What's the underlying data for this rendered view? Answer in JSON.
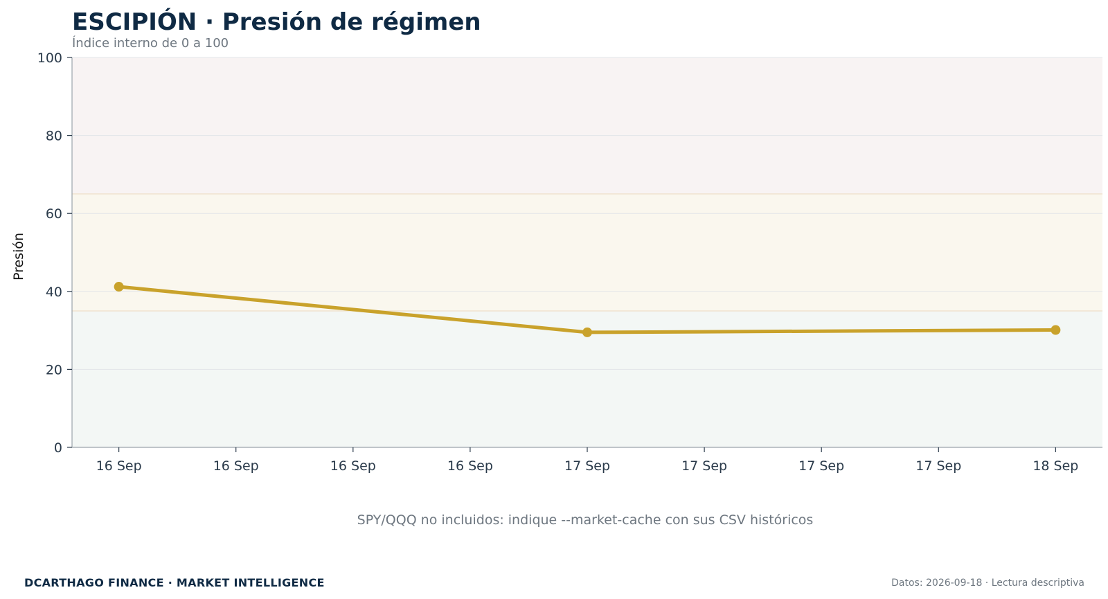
{
  "header": {
    "title": "ESCIPIÓN · Presión de régimen",
    "subtitle": "Índice interno de 0 a 100"
  },
  "note": "SPY/QQQ no incluidos: indique --market-cache con sus CSV históricos",
  "footer": {
    "left": "DCARTHAGO FINANCE · MARKET INTELLIGENCE",
    "right": "Datos: 2026-09-18 · Lectura descriptiva"
  },
  "colors": {
    "line": "#c9a22b",
    "band_high": "#f8f3f3",
    "band_mid": "#faf7ee",
    "band_low": "#f3f7f5",
    "grid": "#e2e5e8",
    "axis": "#9aa3ab"
  },
  "chart_data": {
    "type": "line",
    "title": "ESCIPIÓN · Presión de régimen",
    "subtitle": "Índice interno de 0 a 100",
    "xlabel": "",
    "ylabel": "Presión",
    "ylim": [
      0,
      100
    ],
    "yticks": [
      0,
      20,
      40,
      60,
      80,
      100
    ],
    "xlim": [
      -0.4,
      8.4
    ],
    "xtick_labels": [
      "16 Sep",
      "16 Sep",
      "16 Sep",
      "16 Sep",
      "17 Sep",
      "17 Sep",
      "17 Sep",
      "17 Sep",
      "18 Sep"
    ],
    "bands": [
      {
        "from": 0,
        "to": 35,
        "color": "#f3f7f5"
      },
      {
        "from": 35,
        "to": 65,
        "color": "#faf7ee"
      },
      {
        "from": 65,
        "to": 100,
        "color": "#f8f3f3"
      }
    ],
    "grid": true,
    "series": [
      {
        "points": [
          {
            "x": 0,
            "y": 41.2
          },
          {
            "x": 4,
            "y": 29.5
          },
          {
            "x": 8,
            "y": 30.1
          }
        ],
        "color": "#c9a22b"
      }
    ]
  }
}
